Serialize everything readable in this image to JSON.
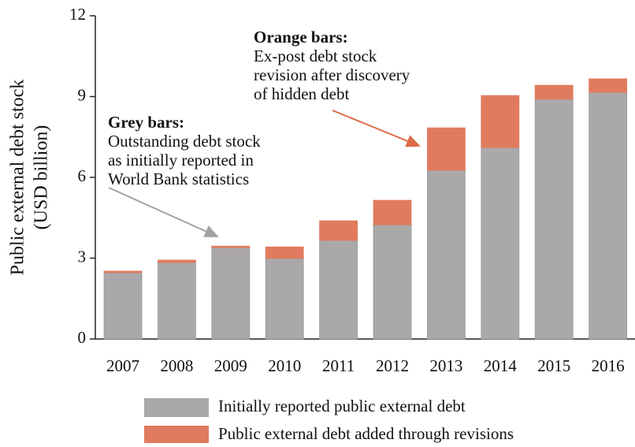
{
  "chart_data": {
    "type": "stacked-bar",
    "ylabel": [
      "Public external debt stock",
      "(USD billion)"
    ],
    "categories": [
      "2007",
      "2008",
      "2009",
      "2010",
      "2011",
      "2012",
      "2013",
      "2014",
      "2015",
      "2016"
    ],
    "series": [
      {
        "name": "Initially reported public external debt",
        "color": "#aba8aa",
        "values": [
          2.46,
          2.84,
          3.39,
          2.99,
          3.66,
          4.24,
          6.26,
          7.11,
          8.9,
          9.16
        ]
      },
      {
        "name": "Public external debt added through revisions",
        "color": "#e07b5f",
        "values": [
          0.06,
          0.09,
          0.06,
          0.43,
          0.73,
          0.91,
          1.58,
          1.93,
          0.52,
          0.5
        ]
      }
    ],
    "ylim": [
      0,
      12
    ],
    "yticks": [
      0,
      3,
      6,
      9,
      12
    ],
    "annotations": [
      {
        "title": "Grey bars:",
        "lines": [
          "Outstanding debt stock",
          "as initially reported in",
          "World Bank statistics"
        ],
        "color": "#a3a3a3"
      },
      {
        "title": "Orange bars:",
        "lines": [
          "Ex-post debt stock",
          "revision after discovery",
          "of hidden debt"
        ],
        "color": "#dd6a47"
      }
    ]
  }
}
